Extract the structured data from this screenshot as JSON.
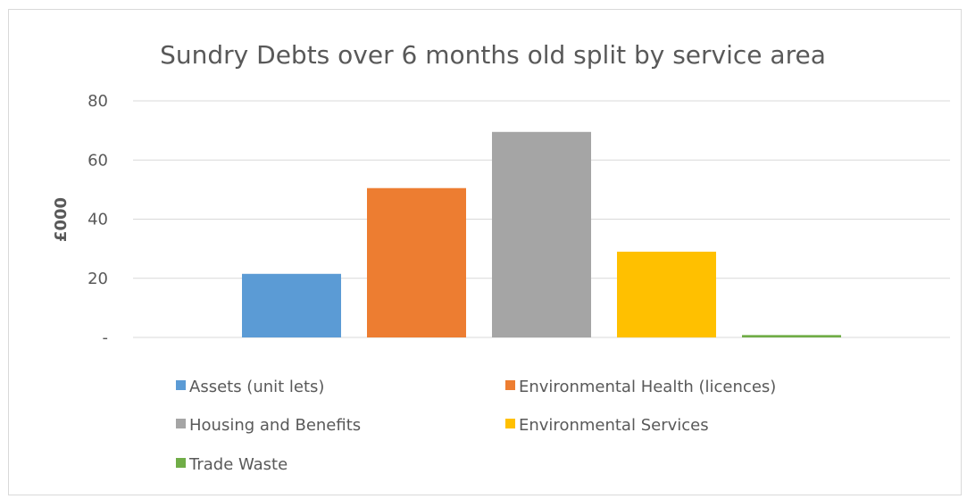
{
  "chart_data": {
    "type": "bar",
    "title": "Sundry Debts over 6 months old split by service area",
    "xlabel": "",
    "ylabel": "£000",
    "ylim": [
      0,
      80
    ],
    "yticks": [
      {
        "value": 0,
        "label": "-"
      },
      {
        "value": 20,
        "label": "20"
      },
      {
        "value": 40,
        "label": "40"
      },
      {
        "value": 60,
        "label": "60"
      },
      {
        "value": 80,
        "label": "80"
      }
    ],
    "grid": true,
    "legend_position": "bottom",
    "series": [
      {
        "name": "Assets (unit lets)",
        "values": [
          21.5
        ],
        "color": "#5b9bd5"
      },
      {
        "name": "Environmental Health (licences)",
        "values": [
          50.5
        ],
        "color": "#ed7d31"
      },
      {
        "name": "Housing and Benefits",
        "values": [
          69.5
        ],
        "color": "#a5a5a5"
      },
      {
        "name": "Environmental Services",
        "values": [
          29
        ],
        "color": "#ffc000"
      },
      {
        "name": "Trade Waste",
        "values": [
          0.8
        ],
        "color": "#70ad47"
      }
    ]
  }
}
